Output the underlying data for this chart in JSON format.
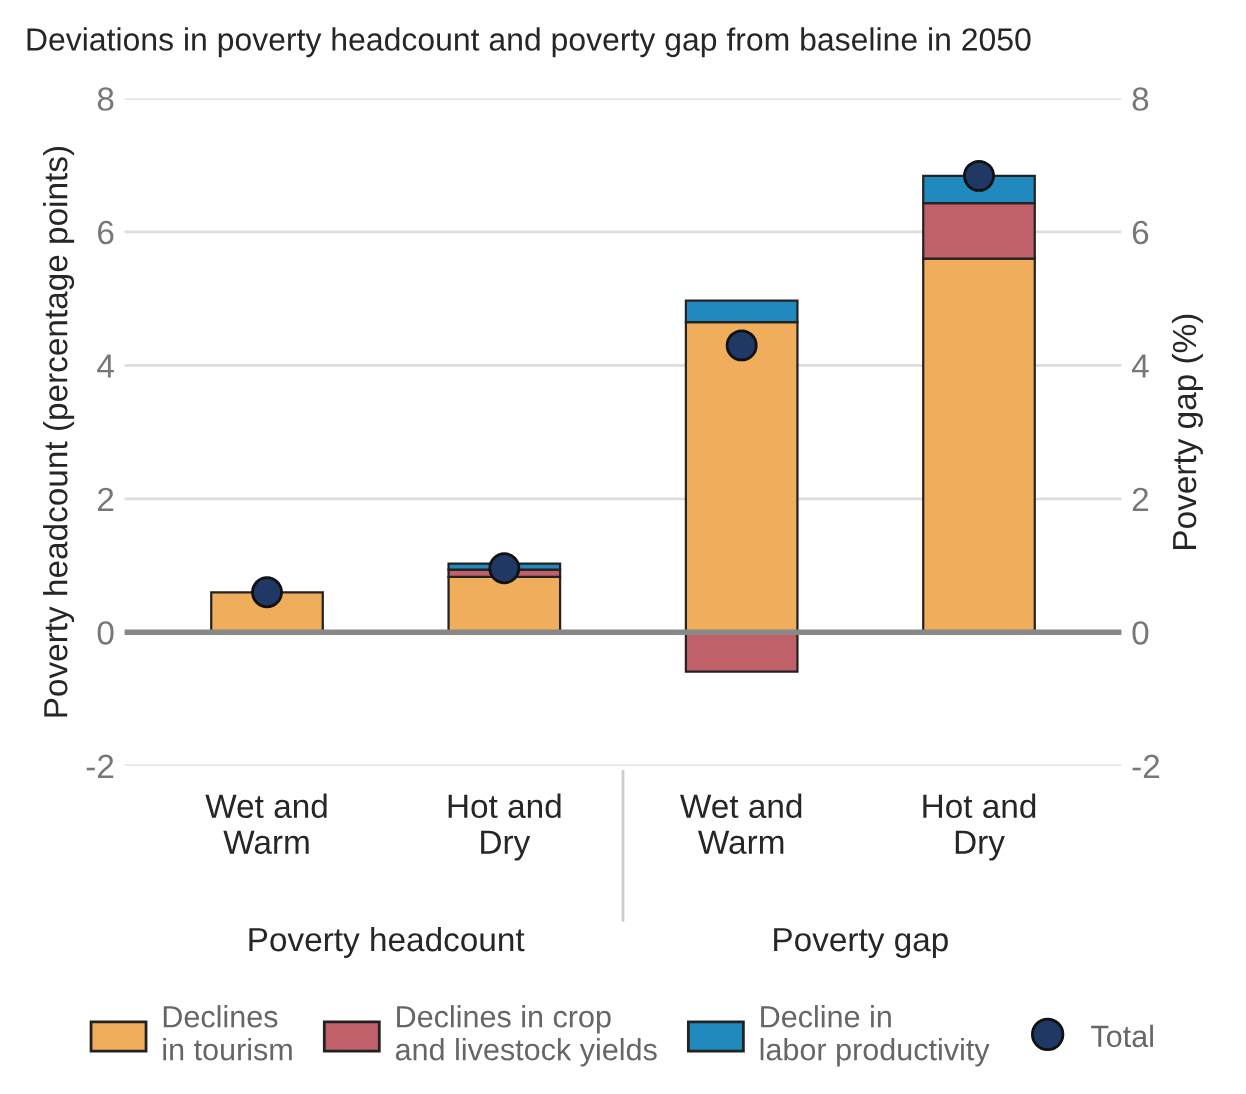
{
  "chart_data": {
    "type": "bar",
    "title": "Deviations in poverty headcount and poverty gap from baseline in 2050",
    "categories": [
      "Wet and\nWarm",
      "Hot and\nDry",
      "Wet and\nWarm",
      "Hot and\nDry"
    ],
    "series": [
      {
        "name": "Declines\nin tourism",
        "color": "#f0ad5c",
        "values": [
          0.6,
          0.83,
          4.65,
          5.6
        ]
      },
      {
        "name": "Declines in crop\nand livestock yields",
        "color": "#c06068",
        "values": [
          null,
          0.11,
          -0.59,
          0.83
        ]
      },
      {
        "name": "Decline in\nlabor productivity",
        "color": "#2089bd",
        "values": [
          null,
          0.09,
          0.32,
          0.41
        ]
      },
      {
        "name": "Total",
        "type": "scatter",
        "color": "#1f3864",
        "marker": "circle",
        "values": [
          0.6,
          0.96,
          4.3,
          6.84
        ]
      }
    ],
    "stacked": true,
    "ylabel": "Poverty headcount (percentage points)",
    "y2label": "Poverty gap (%)",
    "ylim": [
      -2,
      8
    ],
    "yticks": [
      {
        "value": -2,
        "label": "-2"
      },
      0,
      2,
      4,
      6,
      8
    ],
    "y2lim": [
      -2,
      8
    ],
    "y2ticks": [
      {
        "value": -2,
        "label": "-2"
      },
      0,
      2,
      4,
      6,
      8
    ],
    "annotations": [
      "Poverty headcount",
      "Poverty gap"
    ],
    "grid": "y",
    "legend": "bottom"
  }
}
